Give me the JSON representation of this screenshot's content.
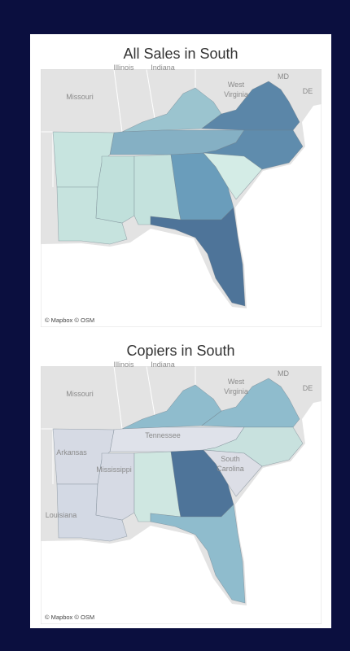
{
  "maps": [
    {
      "title": "All Sales in South",
      "labels": [
        "Missouri",
        "Illinois",
        "Indiana",
        "West",
        "Virginia",
        "MD",
        "DE"
      ],
      "credit": "© Mapbox © OSM"
    },
    {
      "title": "Copiers in South",
      "labels": [
        "Missouri",
        "Illinois",
        "Indiana",
        "West",
        "Virginia",
        "MD",
        "DE",
        "Tennessee",
        "Arkansas",
        "Mississippi",
        "Louisiana",
        "South",
        "Carolina"
      ],
      "credit": "© Mapbox © OSM"
    }
  ]
}
